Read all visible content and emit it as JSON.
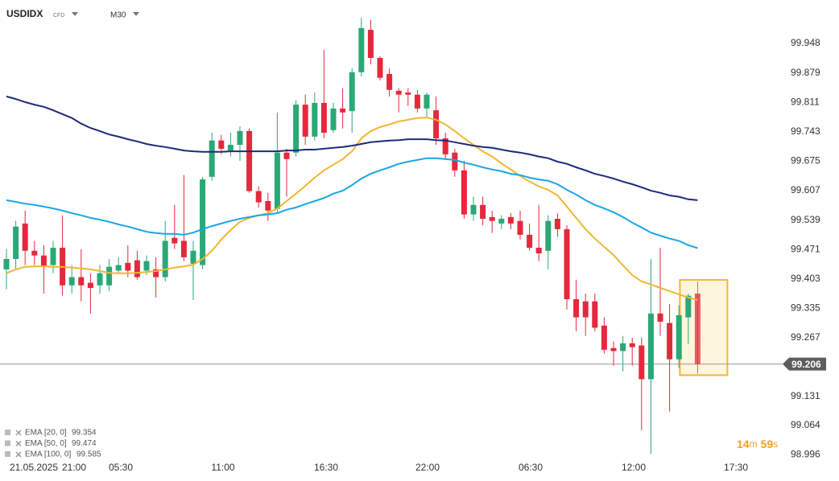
{
  "header": {
    "symbol": "USDIDX",
    "instrument": "CFD",
    "timeframe": "M30"
  },
  "countdown": {
    "minutes": 14,
    "minutes_unit": "m",
    "seconds": 59,
    "seconds_unit": "s"
  },
  "chart_data": {
    "type": "candlestick",
    "x_labels": [
      "21.05.2025",
      "21:00",
      "05:30",
      "11:00",
      "16:30",
      "22:00",
      "06:30",
      "12:00",
      "17:30"
    ],
    "up_color": "#2aa876",
    "down_color": "#e5283c",
    "open": [
      99.425,
      99.449,
      99.531,
      99.468,
      99.457,
      99.435,
      99.475,
      99.388,
      99.407,
      99.394,
      99.388,
      99.388,
      99.422,
      99.44,
      99.446,
      99.422,
      99.425,
      99.407,
      99.498,
      99.491,
      99.438,
      99.435,
      99.639,
      99.723,
      99.7,
      99.713,
      99.745,
      99.606,
      99.583,
      99.565,
      99.695,
      99.695,
      99.806,
      99.732,
      99.81,
      99.747,
      99.797,
      99.791,
      99.881,
      99.979,
      99.914,
      99.877,
      99.838,
      99.834,
      99.829,
      99.797,
      99.793,
      99.728,
      99.695,
      99.654,
      99.552,
      99.574,
      99.546,
      99.531,
      99.546,
      99.537,
      99.505,
      99.475,
      99.468,
      99.542,
      99.518,
      99.356,
      99.351,
      99.351,
      99.295,
      99.243,
      99.236,
      99.254,
      99.249,
      99.171,
      99.323,
      99.301,
      99.217,
      99.314,
      99.369
    ],
    "high": [
      99.472,
      99.537,
      99.561,
      99.491,
      99.481,
      99.491,
      99.55,
      99.435,
      99.472,
      99.416,
      99.435,
      99.449,
      99.453,
      99.481,
      99.468,
      99.457,
      99.453,
      99.537,
      99.574,
      99.643,
      99.491,
      99.639,
      99.741,
      99.736,
      99.741,
      99.756,
      99.751,
      99.617,
      99.602,
      99.788,
      99.704,
      99.816,
      99.829,
      99.834,
      99.933,
      99.81,
      99.844,
      99.89,
      100.007,
      100.002,
      99.918,
      99.89,
      99.844,
      99.844,
      99.84,
      99.834,
      99.825,
      99.741,
      99.704,
      99.676,
      99.593,
      99.593,
      99.561,
      99.55,
      99.555,
      99.561,
      99.531,
      99.574,
      99.55,
      99.555,
      99.527,
      99.401,
      99.369,
      99.369,
      99.314,
      99.258,
      99.271,
      99.267,
      99.267,
      99.449,
      99.475,
      99.345,
      99.342,
      99.369,
      99.397
    ],
    "low": [
      99.379,
      99.425,
      99.435,
      99.435,
      99.369,
      99.416,
      99.364,
      99.369,
      99.351,
      99.323,
      99.369,
      99.375,
      99.416,
      99.407,
      99.401,
      99.412,
      99.36,
      99.397,
      99.472,
      99.444,
      99.354,
      99.425,
      99.63,
      99.691,
      99.686,
      99.676,
      99.602,
      99.568,
      99.537,
      99.555,
      99.593,
      99.686,
      99.713,
      99.723,
      99.728,
      99.741,
      99.751,
      99.741,
      99.871,
      99.899,
      99.862,
      99.825,
      99.788,
      99.803,
      99.788,
      99.778,
      99.713,
      99.68,
      99.639,
      99.542,
      99.537,
      99.527,
      99.509,
      99.518,
      99.518,
      99.494,
      99.468,
      99.444,
      99.425,
      99.5,
      99.332,
      99.282,
      99.271,
      99.282,
      99.23,
      99.202,
      99.189,
      99.202,
      99.053,
      98.998,
      99.271,
      99.096,
      99.197,
      99.252,
      99.184
    ],
    "close": [
      99.449,
      99.524,
      99.468,
      99.457,
      99.431,
      99.475,
      99.388,
      99.407,
      99.388,
      99.382,
      99.416,
      99.431,
      99.435,
      99.422,
      99.407,
      99.444,
      99.407,
      99.491,
      99.485,
      99.453,
      99.468,
      99.633,
      99.723,
      99.704,
      99.713,
      99.745,
      99.606,
      99.58,
      99.561,
      99.695,
      99.68,
      99.806,
      99.732,
      99.81,
      99.741,
      99.797,
      99.788,
      99.881,
      99.983,
      99.914,
      99.868,
      99.84,
      99.829,
      99.829,
      99.797,
      99.829,
      99.728,
      99.691,
      99.654,
      99.552,
      99.574,
      99.542,
      99.537,
      99.542,
      99.531,
      99.505,
      99.475,
      99.462,
      99.537,
      99.518,
      99.356,
      99.314,
      99.314,
      99.29,
      99.239,
      99.236,
      99.254,
      99.245,
      99.171,
      99.323,
      99.304,
      99.217,
      99.319,
      99.364,
      99.206
    ],
    "series": [
      {
        "name": "EMA [20, 0]",
        "color": "#f2b632",
        "values": [
          99.416,
          99.425,
          99.431,
          99.432,
          99.432,
          99.431,
          99.431,
          99.429,
          99.427,
          99.425,
          99.421,
          99.417,
          99.416,
          99.416,
          99.417,
          99.419,
          99.421,
          99.425,
          99.429,
          99.432,
          99.436,
          99.449,
          99.468,
          99.494,
          99.516,
          99.535,
          99.544,
          99.55,
          99.555,
          99.566,
          99.583,
          99.6,
          99.618,
          99.637,
          99.654,
          99.667,
          99.68,
          99.698,
          99.728,
          99.745,
          99.754,
          99.76,
          99.767,
          99.771,
          99.775,
          99.776,
          99.771,
          99.76,
          99.745,
          99.728,
          99.713,
          99.698,
          99.686,
          99.67,
          99.656,
          99.641,
          99.628,
          99.617,
          99.609,
          99.596,
          99.57,
          99.544,
          99.518,
          99.496,
          99.477,
          99.458,
          99.434,
          99.412,
          99.397,
          99.39,
          99.382,
          99.375,
          99.367,
          99.36,
          99.354
        ]
      },
      {
        "name": "EMA [50, 0]",
        "color": "#1aa6e6",
        "values": [
          99.585,
          99.581,
          99.577,
          99.574,
          99.57,
          99.566,
          99.561,
          99.555,
          99.55,
          99.544,
          99.54,
          99.535,
          99.529,
          99.524,
          99.518,
          99.512,
          99.509,
          99.507,
          99.507,
          99.505,
          99.51,
          99.518,
          99.525,
          99.531,
          99.537,
          99.542,
          99.546,
          99.55,
          99.552,
          99.555,
          99.563,
          99.568,
          99.576,
          99.583,
          99.59,
          99.6,
          99.607,
          99.62,
          99.635,
          99.646,
          99.654,
          99.661,
          99.669,
          99.674,
          99.678,
          99.682,
          99.682,
          99.68,
          99.678,
          99.672,
          99.667,
          99.661,
          99.656,
          99.652,
          99.646,
          99.643,
          99.637,
          99.633,
          99.63,
          99.622,
          99.609,
          99.598,
          99.585,
          99.574,
          99.566,
          99.557,
          99.546,
          99.533,
          99.522,
          99.51,
          99.503,
          99.496,
          99.491,
          99.481,
          99.474
        ]
      },
      {
        "name": "EMA [100, 0]",
        "color": "#1f2a78",
        "values": [
          99.825,
          99.819,
          99.812,
          99.806,
          99.801,
          99.793,
          99.784,
          99.775,
          99.762,
          99.752,
          99.745,
          99.737,
          99.732,
          99.726,
          99.721,
          99.715,
          99.711,
          99.708,
          99.704,
          99.7,
          99.698,
          99.697,
          99.697,
          99.697,
          99.698,
          99.698,
          99.698,
          99.698,
          99.698,
          99.698,
          99.7,
          99.7,
          99.702,
          99.702,
          99.704,
          99.706,
          99.708,
          99.711,
          99.715,
          99.719,
          99.721,
          99.723,
          99.724,
          99.726,
          99.726,
          99.726,
          99.724,
          99.723,
          99.719,
          99.715,
          99.711,
          99.708,
          99.706,
          99.702,
          99.698,
          99.695,
          99.691,
          99.686,
          99.682,
          99.674,
          99.669,
          99.661,
          99.654,
          99.646,
          99.641,
          99.635,
          99.628,
          99.622,
          99.615,
          99.607,
          99.602,
          99.596,
          99.593,
          99.587,
          99.585
        ]
      }
    ],
    "ylim": [
      98.969,
      100.048
    ],
    "yticks": [
      98.996,
      99.064,
      99.131,
      99.267,
      99.335,
      99.403,
      99.471,
      99.539,
      99.607,
      99.675,
      99.743,
      99.811,
      99.879,
      99.948
    ],
    "grid": false
  }
}
